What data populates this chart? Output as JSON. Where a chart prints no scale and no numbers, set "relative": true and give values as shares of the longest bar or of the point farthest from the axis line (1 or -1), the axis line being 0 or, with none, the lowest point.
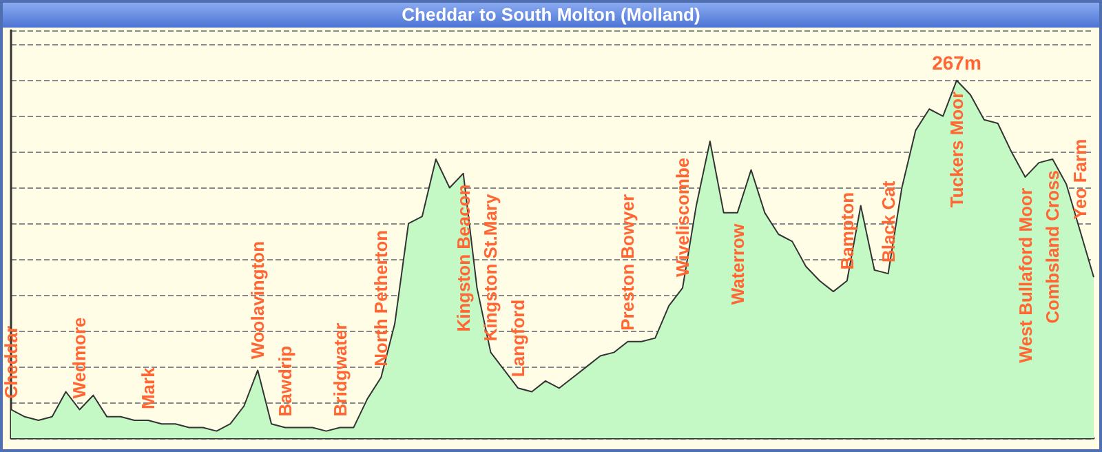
{
  "chart_data": {
    "type": "area",
    "title": "Cheddar to South Molton (Molland)",
    "relative": true,
    "grid": "y",
    "marker": "none",
    "color": "#c4f8c4",
    "categories": [
      "Cheddar",
      null,
      null,
      null,
      null,
      "Wedmore",
      null,
      null,
      null,
      null,
      "Mark",
      null,
      null,
      null,
      null,
      null,
      null,
      null,
      "Woolavington",
      null,
      "Bawdrip",
      null,
      null,
      null,
      "Bridgwater",
      null,
      null,
      "North Petherton",
      null,
      null,
      null,
      null,
      null,
      "Kingston Beacon",
      null,
      "Kingston St.Mary",
      null,
      "Langford",
      null,
      null,
      null,
      null,
      null,
      null,
      null,
      "Preston Bowyer",
      null,
      null,
      null,
      "Wiveliscombe",
      null,
      null,
      null,
      "Waterrow",
      null,
      null,
      null,
      null,
      null,
      null,
      null,
      "Bampton",
      null,
      null,
      "Black Cat",
      null,
      null,
      null,
      null,
      "Tuckers Moor",
      null,
      null,
      null,
      null,
      "West Bullaford Moor",
      null,
      "Combsland Cross",
      null,
      "Yeo Farm",
      null
    ],
    "values": [
      0.08,
      0.06,
      0.05,
      0.06,
      0.13,
      0.08,
      0.12,
      0.06,
      0.06,
      0.05,
      0.05,
      0.04,
      0.04,
      0.03,
      0.03,
      0.02,
      0.04,
      0.09,
      0.19,
      0.04,
      0.03,
      0.03,
      0.03,
      0.02,
      0.03,
      0.03,
      0.11,
      0.17,
      0.32,
      0.6,
      0.62,
      0.78,
      0.7,
      0.74,
      0.42,
      0.24,
      0.19,
      0.14,
      0.13,
      0.16,
      0.14,
      0.17,
      0.2,
      0.23,
      0.24,
      0.27,
      0.27,
      0.28,
      0.37,
      0.42,
      0.65,
      0.83,
      0.63,
      0.63,
      0.75,
      0.63,
      0.57,
      0.55,
      0.48,
      0.44,
      0.41,
      0.44,
      0.65,
      0.47,
      0.46,
      0.7,
      0.86,
      0.92,
      0.9,
      1,
      0.96,
      0.89,
      0.88,
      0.8,
      0.73,
      0.77,
      0.78,
      0.71,
      0.58,
      0.45
    ],
    "annotations": [
      {
        "text": "267m",
        "x": "Tuckers Moor",
        "y": 1
      }
    ]
  }
}
